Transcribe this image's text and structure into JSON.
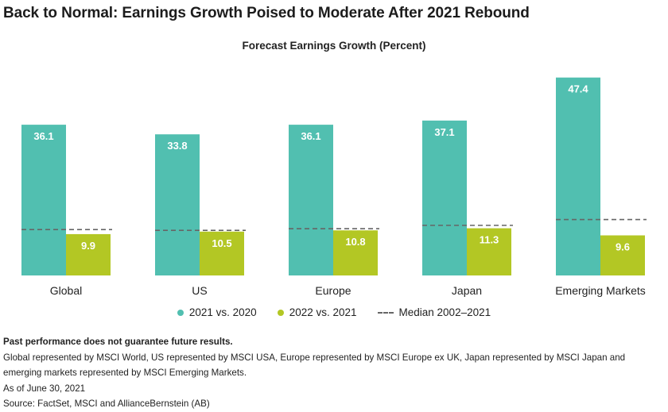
{
  "title": "Back to Normal: Earnings Growth Poised to Moderate After 2021 Rebound",
  "subtitle": "Forecast Earnings Growth (Percent)",
  "colors": {
    "series1": "#51bfb0",
    "series2": "#b3c724",
    "median": "#666666"
  },
  "legend": {
    "series1": "2021 vs. 2020",
    "series2": "2022 vs. 2021",
    "median": "Median 2002–2021"
  },
  "notes": {
    "disclaimer": "Past performance does not guarantee future results.",
    "indices": "Global represented by MSCI World, US represented by MSCI USA, Europe represented by MSCI Europe ex UK, Japan represented by MSCI Japan and emerging markets represented by MSCI Emerging Markets.",
    "date": "As of June 30, 2021",
    "source": "Source: FactSet, MSCI and AllianceBernstein (AB)"
  },
  "chart_data": {
    "type": "bar",
    "categories": [
      "Global",
      "US",
      "Europe",
      "Japan",
      "Emerging Markets"
    ],
    "series": [
      {
        "name": "2021 vs. 2020",
        "values": [
          36.1,
          33.8,
          36.1,
          37.1,
          47.4
        ]
      },
      {
        "name": "2022 vs. 2021",
        "values": [
          9.9,
          10.5,
          10.8,
          11.3,
          9.6
        ]
      }
    ],
    "median": {
      "name": "Median 2002–2021",
      "values": [
        11.0,
        10.8,
        11.2,
        12.0,
        13.4
      ]
    },
    "ylim": [
      0,
      50
    ],
    "grid": false,
    "legend_position": "bottom"
  }
}
